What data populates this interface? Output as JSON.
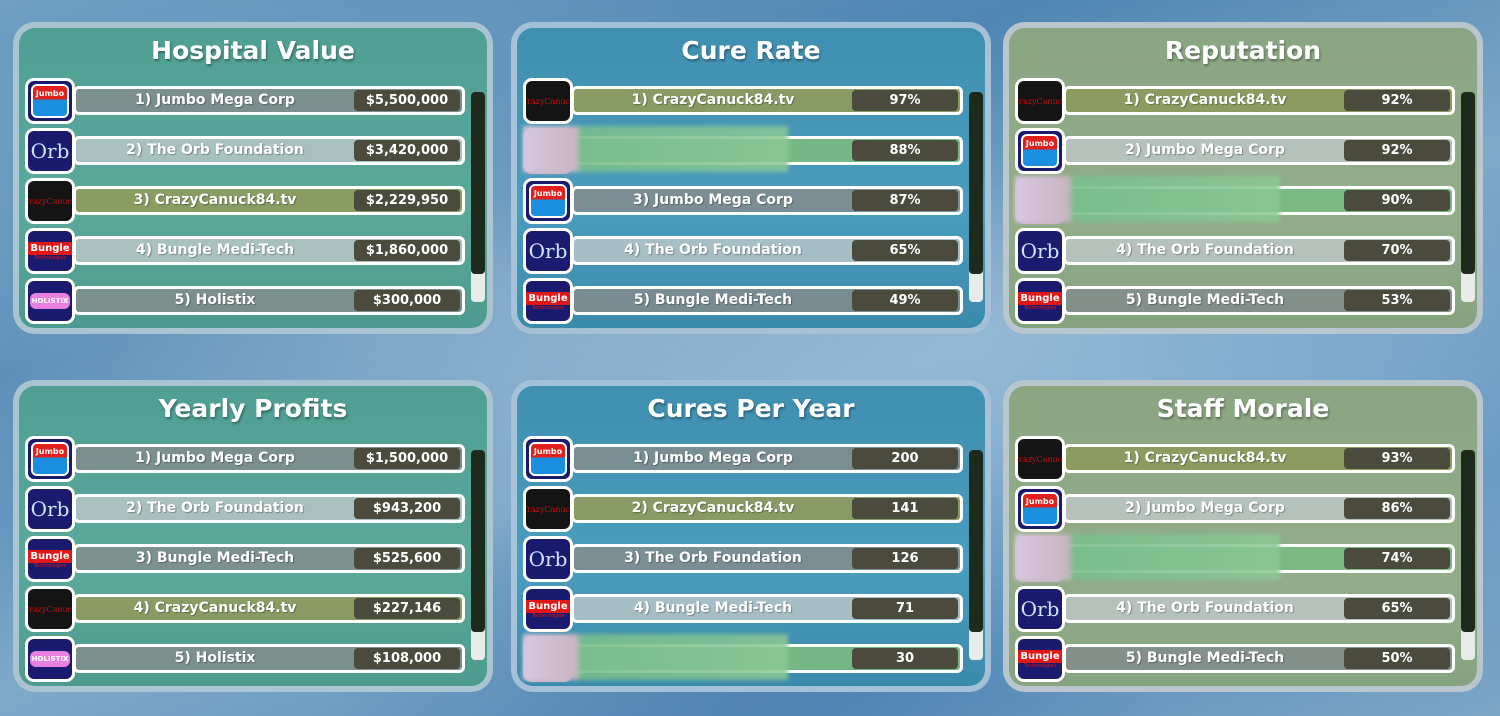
{
  "panels": [
    {
      "title": "Hospital Value",
      "color": "teal",
      "rows": [
        {
          "label": "1) Jumbo Mega Corp",
          "value": "$5,500,000",
          "logo": "jumbo",
          "type": "normal"
        },
        {
          "label": "2) The Orb Foundation",
          "value": "$3,420,000",
          "logo": "orb",
          "type": "alt"
        },
        {
          "label": "3) CrazyCanuck84.tv",
          "value": "$2,229,950",
          "logo": "crazycanuck",
          "type": "hl"
        },
        {
          "label": "4) Bungle Medi-Tech",
          "value": "$1,860,000",
          "logo": "bungle",
          "type": "alt"
        },
        {
          "label": "5) Holistix",
          "value": "$300,000",
          "logo": "holistix",
          "type": "normal"
        }
      ]
    },
    {
      "title": "Cure Rate",
      "color": "blue",
      "rows": [
        {
          "label": "1) CrazyCanuck84.tv",
          "value": "97%",
          "logo": "crazycanuck",
          "type": "hl"
        },
        {
          "label": "",
          "value": "88%",
          "logo": "blurred-player",
          "type": "pl"
        },
        {
          "label": "3) Jumbo Mega Corp",
          "value": "87%",
          "logo": "jumbo",
          "type": "normal"
        },
        {
          "label": "4) The Orb Foundation",
          "value": "65%",
          "logo": "orb",
          "type": "alt"
        },
        {
          "label": "5) Bungle Medi-Tech",
          "value": "49%",
          "logo": "bungle",
          "type": "normal"
        }
      ]
    },
    {
      "title": "Reputation",
      "color": "olive",
      "rows": [
        {
          "label": "1) CrazyCanuck84.tv",
          "value": "92%",
          "logo": "crazycanuck",
          "type": "hl"
        },
        {
          "label": "2) Jumbo Mega Corp",
          "value": "92%",
          "logo": "jumbo",
          "type": "alt"
        },
        {
          "label": "",
          "value": "90%",
          "logo": "blurred-player",
          "type": "pl"
        },
        {
          "label": "4) The Orb Foundation",
          "value": "70%",
          "logo": "orb",
          "type": "alt"
        },
        {
          "label": "5) Bungle Medi-Tech",
          "value": "53%",
          "logo": "bungle",
          "type": "normal"
        }
      ]
    },
    {
      "title": "Yearly Profits",
      "color": "teal",
      "rows": [
        {
          "label": "1) Jumbo Mega Corp",
          "value": "$1,500,000",
          "logo": "jumbo",
          "type": "normal"
        },
        {
          "label": "2) The Orb Foundation",
          "value": "$943,200",
          "logo": "orb",
          "type": "alt"
        },
        {
          "label": "3) Bungle Medi-Tech",
          "value": "$525,600",
          "logo": "bungle",
          "type": "normal"
        },
        {
          "label": "4) CrazyCanuck84.tv",
          "value": "$227,146",
          "logo": "crazycanuck",
          "type": "hl"
        },
        {
          "label": "5) Holistix",
          "value": "$108,000",
          "logo": "holistix",
          "type": "normal"
        }
      ]
    },
    {
      "title": "Cures Per Year",
      "color": "blue",
      "rows": [
        {
          "label": "1) Jumbo Mega Corp",
          "value": "200",
          "logo": "jumbo",
          "type": "normal"
        },
        {
          "label": "2) CrazyCanuck84.tv",
          "value": "141",
          "logo": "crazycanuck",
          "type": "hl"
        },
        {
          "label": "3) The Orb Foundation",
          "value": "126",
          "logo": "orb",
          "type": "normal"
        },
        {
          "label": "4) Bungle Medi-Tech",
          "value": "71",
          "logo": "bungle",
          "type": "alt"
        },
        {
          "label": "",
          "value": "30",
          "logo": "blurred-player",
          "type": "pl"
        }
      ]
    },
    {
      "title": "Staff Morale",
      "color": "olive",
      "rows": [
        {
          "label": "1) CrazyCanuck84.tv",
          "value": "93%",
          "logo": "crazycanuck",
          "type": "hl"
        },
        {
          "label": "2) Jumbo Mega Corp",
          "value": "86%",
          "logo": "jumbo",
          "type": "alt"
        },
        {
          "label": "",
          "value": "74%",
          "logo": "blurred-player",
          "type": "pl"
        },
        {
          "label": "4) The Orb Foundation",
          "value": "65%",
          "logo": "orb",
          "type": "alt"
        },
        {
          "label": "5) Bungle Medi-Tech",
          "value": "50%",
          "logo": "bungle",
          "type": "normal"
        }
      ]
    }
  ],
  "logo_text": {
    "jumbo": "Jumbo",
    "orb": "Orb",
    "crazycanuck": "CrazyCanuck",
    "bungle": "Bungle",
    "bungle_sub": "Technologies",
    "holistix": "HOLISTIX"
  }
}
